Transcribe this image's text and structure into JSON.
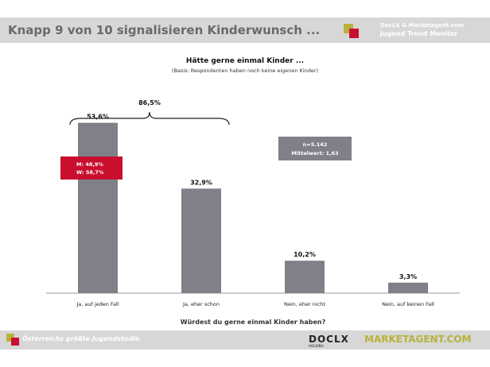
{
  "header": {
    "title": "Knapp 9 von 10 signalisieren Kinderwunsch ...",
    "brand_line1": "DocLX & Marketagent.com",
    "brand_line2": "Jugend Trend Monitor"
  },
  "chart_data": {
    "type": "bar",
    "title": "Hätte gerne einmal Kinder ...",
    "subtitle": "(Basis: Respondenten haben noch keine eigenen Kinder)",
    "xlabel": "Würdest du gerne einmal Kinder haben?",
    "ylabel": "",
    "ylim": [
      0,
      60
    ],
    "categories": [
      "Ja, auf jeden Fall",
      "Ja, eher schon",
      "Nein, eher nicht",
      "Nein, auf keinen Fall"
    ],
    "values": [
      53.6,
      32.9,
      10.2,
      3.3
    ],
    "value_labels": [
      "53,6%",
      "32,9%",
      "10,2%",
      "3,3%"
    ],
    "bar_color": "#7f8088",
    "brace_label": "86,5%",
    "gender_box": {
      "m": "M: 48,9%",
      "w": "W: 58,7%",
      "color": "#c8102e"
    },
    "info_box": {
      "n": "n=5.142",
      "mean": "Mittelwert: 1,63",
      "color": "#7f8088"
    }
  },
  "footer": {
    "tagline": "Österreichs größte Jugendstudie.",
    "doclix": "DOCLX",
    "doclix_sub": "HOLDING",
    "marketagent": "MARKETAGENT.COM"
  }
}
